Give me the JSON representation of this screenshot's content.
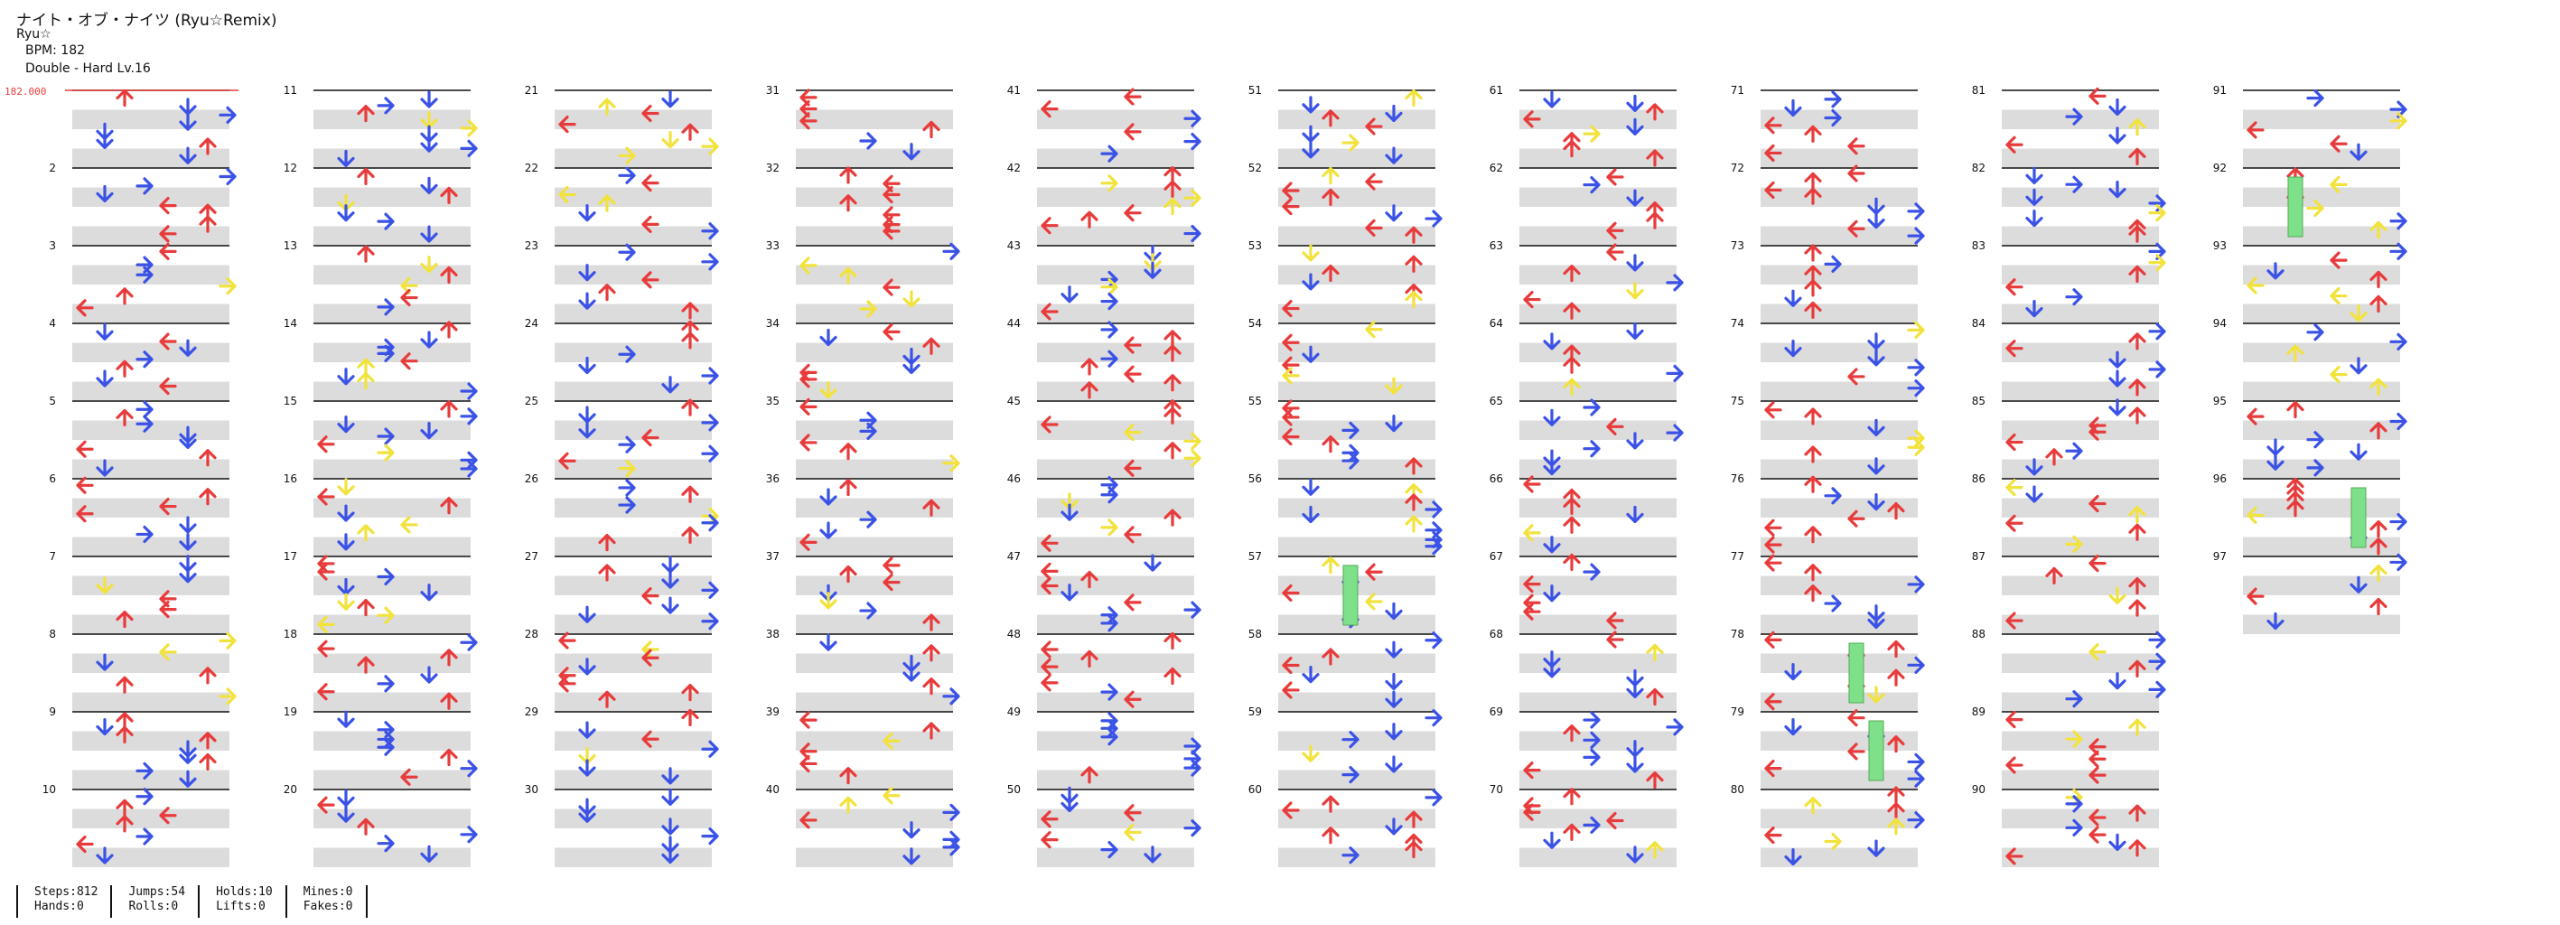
{
  "song": {
    "title": "ナイト・オブ・ナイツ (Ryu☆Remix)",
    "artist": "Ryu☆",
    "bpm_text": "BPM: 182",
    "difficulty_text": "Double - Hard  Lv.16"
  },
  "chart": {
    "bpm_marker": "182.000",
    "measure_count": 97,
    "measures_per_column": 10,
    "colors": {
      "left": "#e83b3b",
      "down": "#3a52e6",
      "up": "#e83b3b",
      "right": "#3a52e6",
      "jump": "#f2e23c",
      "hold": "#7fe08a",
      "stripe": "#dcdcdc",
      "line": "#111111"
    },
    "hold_note_measures": [
      57,
      78,
      79,
      92,
      96
    ]
  },
  "stats": {
    "steps": "Steps:812",
    "hands": "Hands:0",
    "jumps": "Jumps:54",
    "rolls": "Rolls:0",
    "holds": "Holds:10",
    "lifts": "Lifts:0",
    "mines": "Mines:0",
    "fakes": "Fakes:0"
  }
}
